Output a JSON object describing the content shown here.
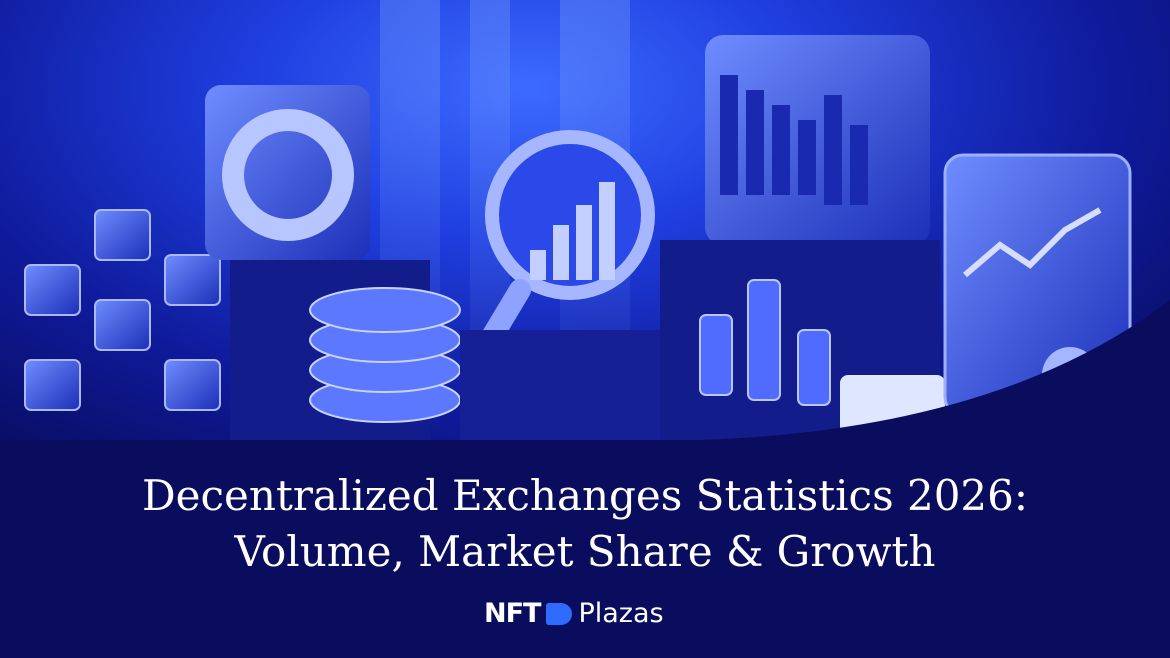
{
  "title": {
    "line1": "Decentralized Exchanges Statistics 2026:",
    "line2": "Volume, Market Share & Growth"
  },
  "logo": {
    "part1": "NFT",
    "part2": "Plazas",
    "mark_color": "#2f6bff"
  },
  "colors": {
    "background": "#0a0d5e",
    "accent": "#2f5bff"
  }
}
